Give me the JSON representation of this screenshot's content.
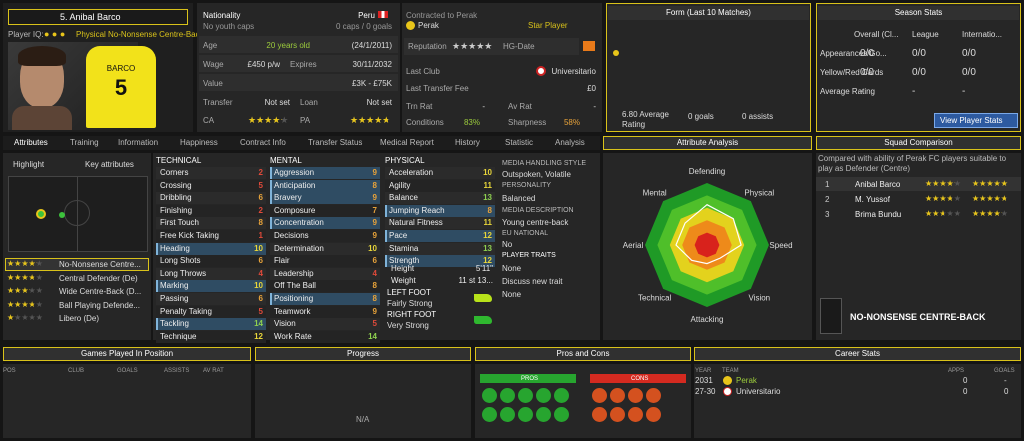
{
  "player": {
    "name": "5. Anibal Barco",
    "iq_label": "Player IQ:",
    "role": "Physical No-Nonsense Centre-Back",
    "shirt_name": "BARCO",
    "shirt_number": "5"
  },
  "info": {
    "nationality_label": "Nationality",
    "nationality": "Peru",
    "youth_caps": "No youth caps",
    "caps": "0 caps / 0 goals",
    "age_label": "Age",
    "age": "20 years old",
    "dob": "(24/1/2011)",
    "wage_label": "Wage",
    "wage": "£450 p/w",
    "expires_label": "Expires",
    "expires": "30/11/2032",
    "value_label": "Value",
    "value": "£3K - £75K",
    "transfer_label": "Transfer",
    "transfer": "Not set",
    "loan_label": "Loan",
    "loan": "Not set",
    "ca_label": "CA",
    "ca_stars": 4,
    "pa_label": "PA",
    "pa_stars": 4.5
  },
  "contract": {
    "label": "Contracted to Perak",
    "club": "Perak",
    "status": "Star Player",
    "reputation_label": "Reputation",
    "reputation_stars": 5,
    "hg_label": "HG-Date",
    "last_club_label": "Last Club",
    "last_club": "Universitario",
    "fee_label": "Last Transfer Fee",
    "fee": "£0",
    "trn_label": "Trn Rat",
    "trn": "-",
    "av_label": "Av Rat",
    "av": "-",
    "conditions_label": "Conditions",
    "conditions": "83%",
    "sharpness_label": "Sharpness",
    "sharpness": "58%"
  },
  "form": {
    "title": "Form (Last 10 Matches)",
    "ratings": [
      6.8
    ],
    "ylim": [
      0,
      10
    ],
    "average": "6.80 Average Rating",
    "goals": "0 goals",
    "assists": "0 assists"
  },
  "season": {
    "title": "Season Stats",
    "columns": [
      "Overall (Cl...",
      "League",
      "Internatio..."
    ],
    "rows": [
      {
        "label": "Appearances/Go...",
        "values": [
          "0/0",
          "0/0",
          "0/0"
        ]
      },
      {
        "label": "Yellow/Red Cards",
        "values": [
          "0/0",
          "0/0",
          "0/0"
        ]
      },
      {
        "label": "Average Rating",
        "values": [
          "-",
          "-",
          "-"
        ]
      }
    ],
    "button": "View Player Stats"
  },
  "tabs": [
    "Attributes",
    "Training",
    "Information",
    "Happiness",
    "Contract Info",
    "Transfer Status",
    "Medical Report",
    "History",
    "Statistic",
    "Analysis"
  ],
  "left": {
    "highlight": "Highlight",
    "key": "Key attributes",
    "roles": [
      {
        "name": "No-Nonsense Centre...",
        "stars": 4
      },
      {
        "name": "Central Defender (De)",
        "stars": 3.5
      },
      {
        "name": "Wide Centre-Back (D...",
        "stars": 3
      },
      {
        "name": "Ball Playing Defende...",
        "stars": 3.5
      },
      {
        "name": "Libero (De)",
        "stars": 1
      }
    ]
  },
  "attributes": {
    "technical": {
      "title": "TECHNICAL",
      "items": [
        {
          "name": "Corners",
          "value": 2
        },
        {
          "name": "Crossing",
          "value": 5
        },
        {
          "name": "Dribbling",
          "value": 6
        },
        {
          "name": "Finishing",
          "value": 2
        },
        {
          "name": "First Touch",
          "value": 8
        },
        {
          "name": "Free Kick Taking",
          "value": 1
        },
        {
          "name": "Heading",
          "value": 10,
          "highlight": true
        },
        {
          "name": "Long Shots",
          "value": 6
        },
        {
          "name": "Long Throws",
          "value": 4
        },
        {
          "name": "Marking",
          "value": 10,
          "highlight": true
        },
        {
          "name": "Passing",
          "value": 6
        },
        {
          "name": "Penalty Taking",
          "value": 5
        },
        {
          "name": "Tackling",
          "value": 14,
          "highlight": true
        },
        {
          "name": "Technique",
          "value": 12
        }
      ]
    },
    "mental": {
      "title": "MENTAL",
      "items": [
        {
          "name": "Aggression",
          "value": 9,
          "highlight": true
        },
        {
          "name": "Anticipation",
          "value": 8,
          "highlight": true
        },
        {
          "name": "Bravery",
          "value": 9,
          "highlight": true
        },
        {
          "name": "Composure",
          "value": 7
        },
        {
          "name": "Concentration",
          "value": 9,
          "highlight": true
        },
        {
          "name": "Decisions",
          "value": 9
        },
        {
          "name": "Determination",
          "value": 10
        },
        {
          "name": "Flair",
          "value": 6
        },
        {
          "name": "Leadership",
          "value": 4
        },
        {
          "name": "Off The Ball",
          "value": 8
        },
        {
          "name": "Positioning",
          "value": 8,
          "highlight": true
        },
        {
          "name": "Teamwork",
          "value": 9
        },
        {
          "name": "Vision",
          "value": 5
        },
        {
          "name": "Work Rate",
          "value": 14
        }
      ]
    },
    "physical": {
      "title": "PHYSICAL",
      "items": [
        {
          "name": "Acceleration",
          "value": 10
        },
        {
          "name": "Agility",
          "value": 11
        },
        {
          "name": "Balance",
          "value": 13
        },
        {
          "name": "Jumping Reach",
          "value": 8,
          "highlight": true
        },
        {
          "name": "Natural Fitness",
          "value": 11
        },
        {
          "name": "Pace",
          "value": 12,
          "highlight": true
        },
        {
          "name": "Stamina",
          "value": 13
        },
        {
          "name": "Strength",
          "value": 12,
          "highlight": true
        }
      ],
      "height_label": "Height",
      "height": "5'11\"",
      "weight_label": "Weight",
      "weight": "11 st 13...",
      "left_foot_label": "LEFT FOOT",
      "left_foot": "Fairly Strong",
      "right_foot_label": "RIGHT FOOT",
      "right_foot": "Very Strong"
    }
  },
  "media": {
    "handling_label": "MEDIA HANDLING STYLE",
    "handling": "Outspoken, Volatile",
    "personality_label": "PERSONALITY",
    "personality": "Balanced",
    "description_label": "MEDIA DESCRIPTION",
    "description": "Young centre-back",
    "eu_label": "EU NATIONAL",
    "eu": "No",
    "traits_label": "PLAYER TRAITS",
    "traits": "None",
    "discuss": "Discuss new trait",
    "discuss_value": "None"
  },
  "analysis": {
    "title": "Attribute Analysis",
    "axes": [
      "Defending",
      "Physical",
      "Speed",
      "Vision",
      "Attacking",
      "Technical",
      "Aerial",
      "Mental"
    ],
    "values": [
      13,
      12,
      11,
      6,
      6,
      7,
      10,
      10
    ],
    "rlim": [
      0,
      20
    ]
  },
  "squad": {
    "title": "Squad Comparison",
    "note": "Compared with ability of Perak FC players suitable to play as Defender (Centre)",
    "rows": [
      {
        "rank": "1",
        "name": "Anibal Barco",
        "current": 4,
        "potential": 5
      },
      {
        "rank": "2",
        "name": "M. Yussof",
        "current": 3.5,
        "potential": 4.5
      },
      {
        "rank": "3",
        "name": "Brima Bundu",
        "current": 2.5,
        "potential": 4
      }
    ],
    "role": "NO-NONSENSE CENTRE-BACK"
  },
  "games": {
    "title": "Games Played In Position",
    "columns": [
      "POS",
      "CLUB",
      "GOALS",
      "ASSISTS",
      "AV RAT"
    ]
  },
  "progress": {
    "title": "Progress",
    "empty": "N/A"
  },
  "pros_cons": {
    "title": "Pros and Cons",
    "pros": "PROS",
    "cons": "CONS"
  },
  "career": {
    "title": "Career Stats",
    "columns": [
      "YEAR",
      "TEAM",
      "APPS",
      "GOALS"
    ],
    "rows": [
      [
        "2031",
        "Perak",
        "0",
        "-"
      ],
      [
        "27-30",
        "Universitario",
        "0",
        "0"
      ]
    ]
  }
}
